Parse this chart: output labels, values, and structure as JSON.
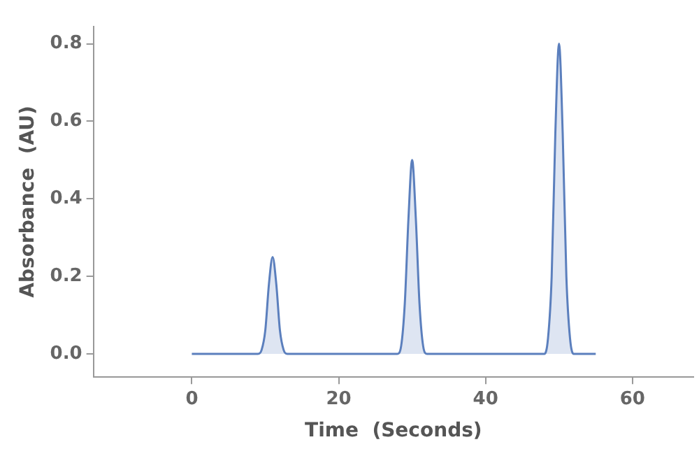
{
  "chart_data": {
    "type": "area",
    "xlabel": "Time  (Seconds)",
    "ylabel": "Absorbance  (AU)",
    "x": [
      0,
      9,
      9.5,
      10,
      10.5,
      11,
      11.5,
      12,
      12.5,
      13,
      28,
      28.5,
      29,
      29.5,
      30,
      30.5,
      31,
      31.5,
      32,
      48,
      48.5,
      49,
      49.5,
      50,
      50.5,
      51,
      51.5,
      52,
      55
    ],
    "series": [
      {
        "color": "#5b7fbd",
        "values": [
          0,
          0,
          0.01,
          0.06,
          0.18,
          0.25,
          0.18,
          0.06,
          0.01,
          0,
          0,
          0.02,
          0.13,
          0.35,
          0.5,
          0.35,
          0.13,
          0.02,
          0,
          0,
          0.04,
          0.2,
          0.57,
          0.8,
          0.57,
          0.2,
          0.04,
          0,
          0
        ]
      }
    ],
    "xlim": [
      -13.4,
      68.3
    ],
    "xticks": [
      0,
      20,
      40,
      60
    ],
    "ylim": [
      -0.06,
      0.845
    ],
    "yticks": [
      {
        "value": 0,
        "label": "0.0"
      },
      0.2,
      0.4,
      0.6,
      0.8
    ],
    "grid": false,
    "legend": false
  }
}
